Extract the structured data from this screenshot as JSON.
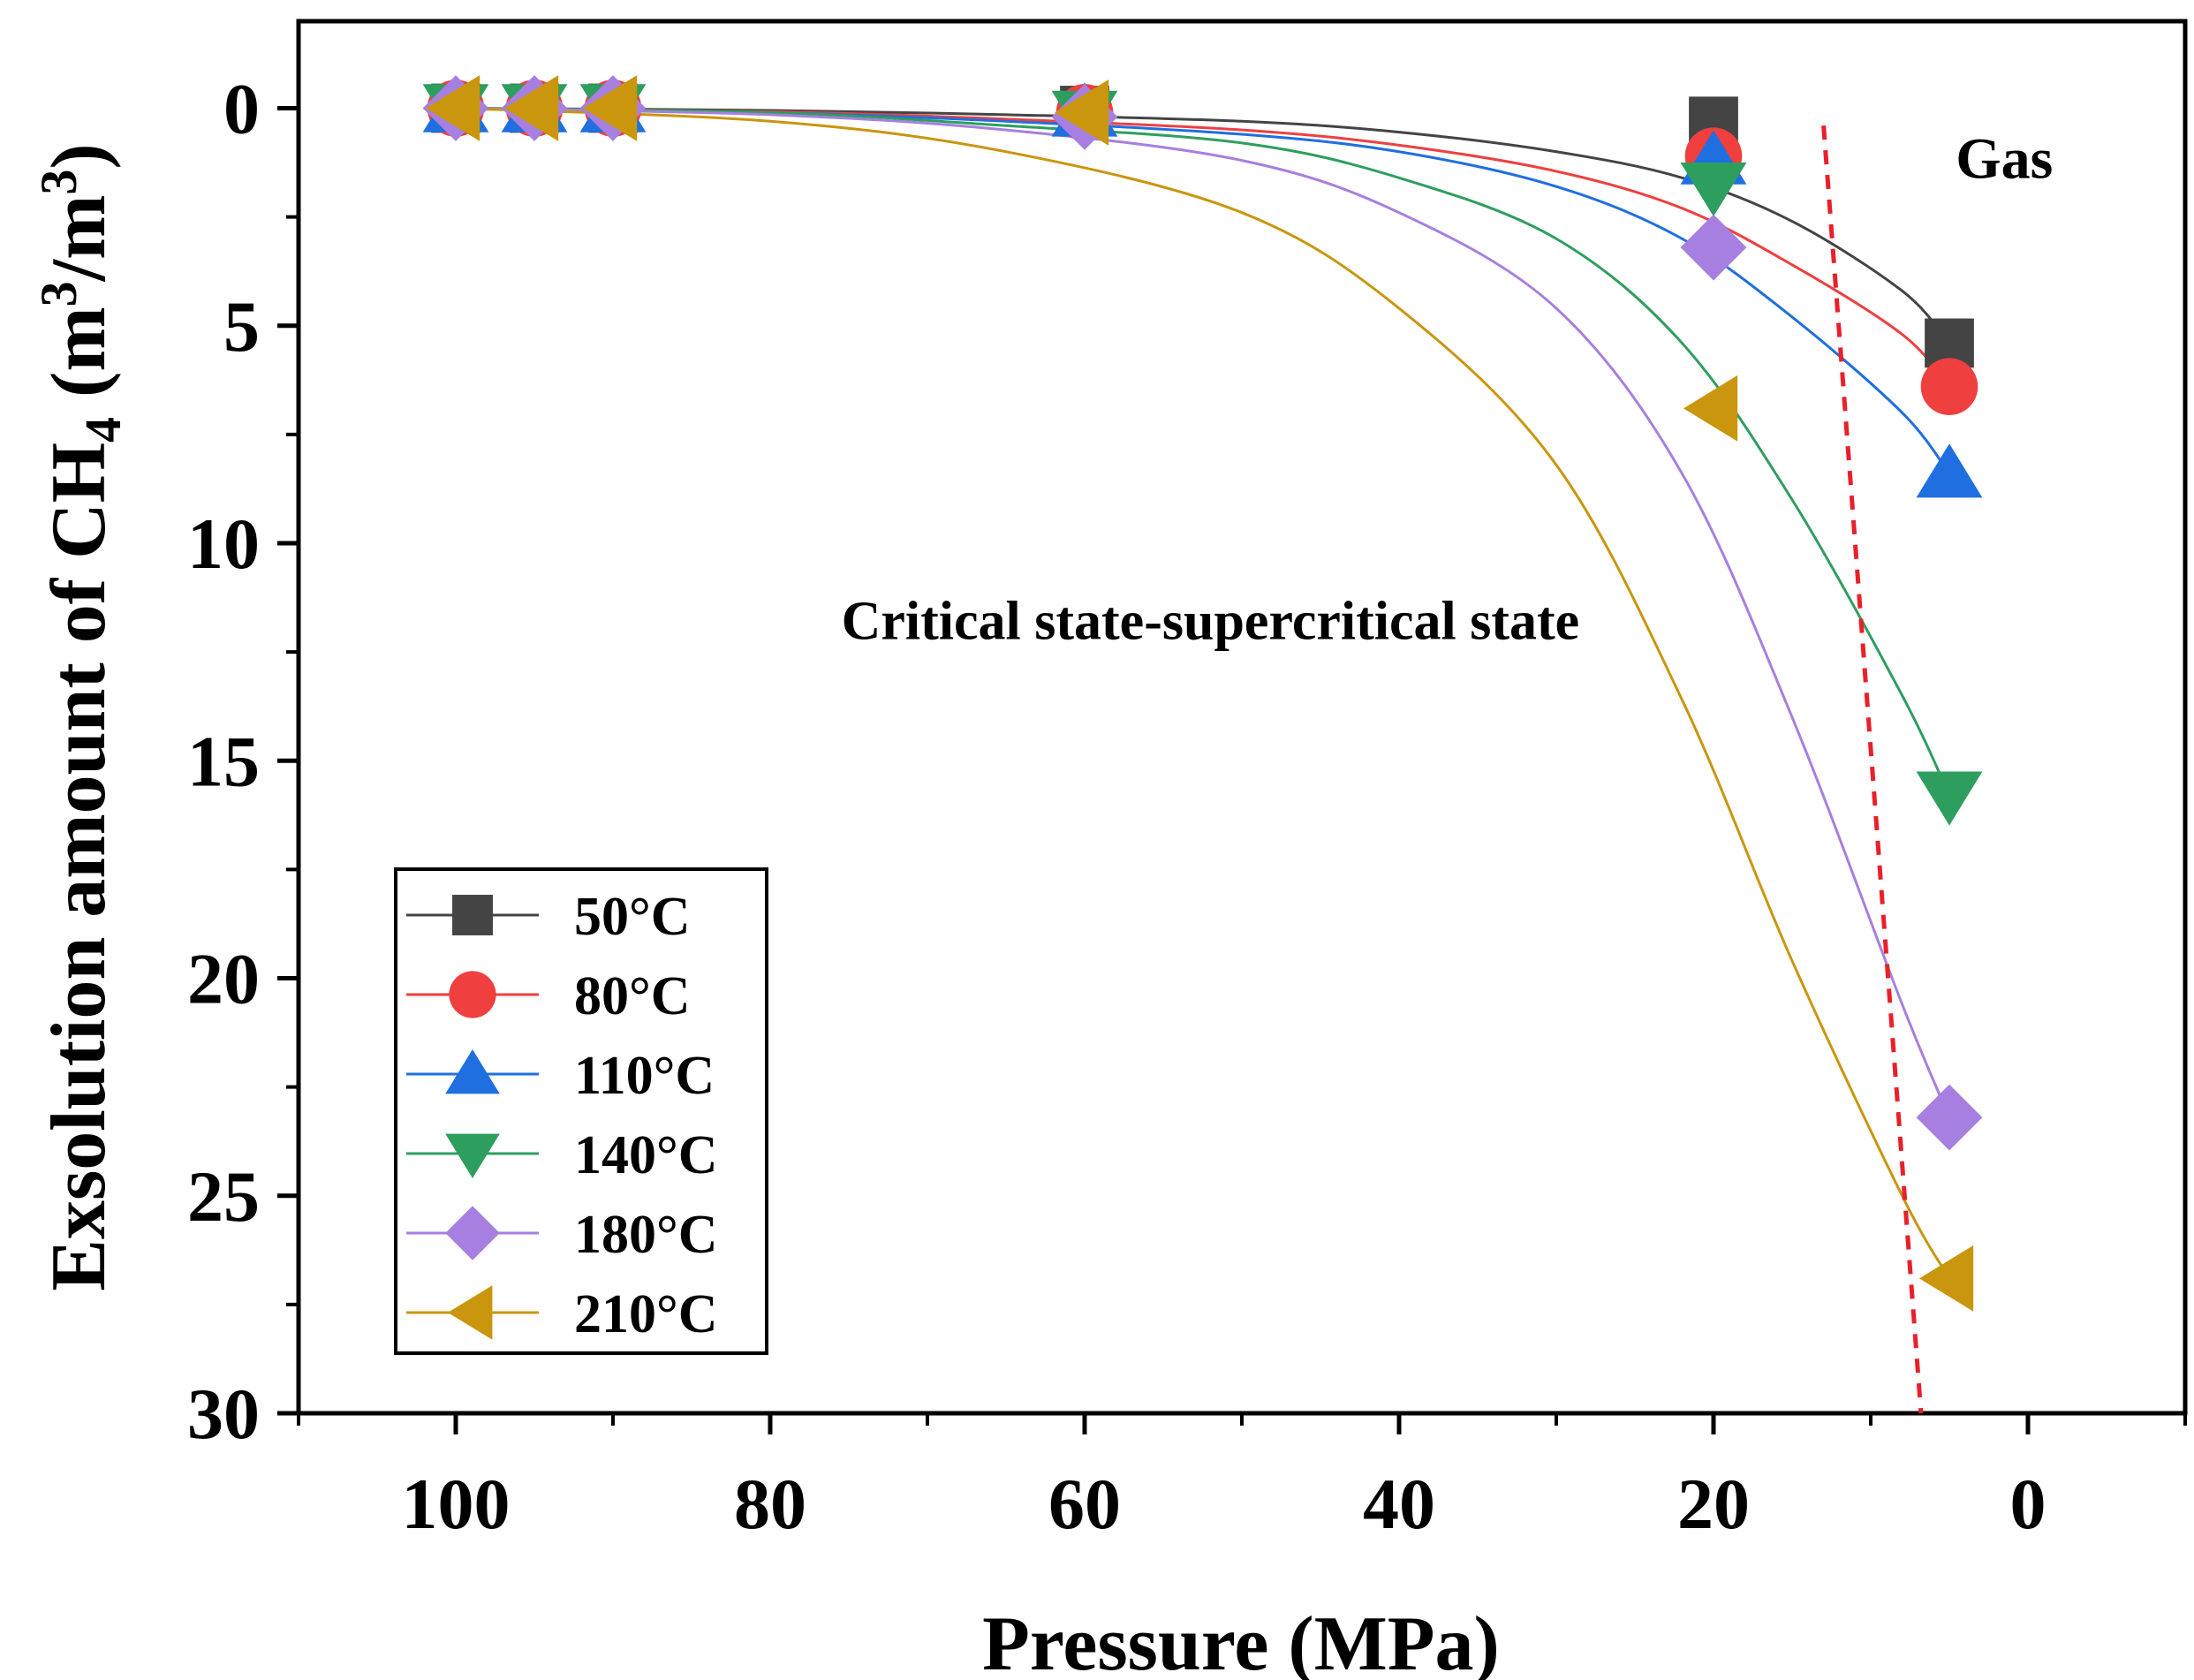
{
  "chart_data": {
    "type": "scatter",
    "xlabel": "Pressure (MPa)",
    "ylabel": {
      "main": "Exsolution amount of CH",
      "sub": "4",
      "unit_pre": " (m",
      "sup1": "3",
      "unit_mid": "/m",
      "sup2": "3",
      "unit_post": ")"
    },
    "xlim": [
      110,
      -10
    ],
    "ylim": [
      30,
      -2
    ],
    "y_reversed": true,
    "x_reversed": true,
    "x_ticks": [
      100,
      80,
      60,
      40,
      20,
      0
    ],
    "x_tick_labels": [
      "100",
      "80",
      "60",
      "40",
      "20",
      "0"
    ],
    "x_minor_ticks": [
      110,
      90,
      70,
      50,
      30,
      10,
      -10
    ],
    "y_ticks": [
      0,
      5,
      10,
      15,
      20,
      25,
      30
    ],
    "y_tick_labels": [
      "0",
      "5",
      "10",
      "15",
      "20",
      "25",
      "30"
    ],
    "y_minor_ticks": [
      2.5,
      7.5,
      12.5,
      17.5,
      22.5,
      27.5
    ],
    "grid": false,
    "legend_position": "bottom-left",
    "annotations": [
      {
        "text": "Gas",
        "x": 1.5,
        "y": 1.6
      },
      {
        "text": "Critical state-supercritical state",
        "x": 52,
        "y": 12.2
      }
    ],
    "divider_line": {
      "style": "dashed",
      "color": "#e8202a",
      "points": [
        [
          13,
          0.4
        ],
        [
          6.8,
          30
        ]
      ]
    },
    "series": [
      {
        "name": "50°C",
        "color": "#444444",
        "marker": "square",
        "x": [
          100,
          95,
          90,
          60,
          20,
          5
        ],
        "y": [
          0,
          0,
          0,
          0.05,
          0.3,
          5.4
        ],
        "fit": [
          0.0,
          0.05,
          0.15,
          0.3,
          0.55,
          1.0,
          1.6,
          2.6,
          4.2,
          5.4
        ]
      },
      {
        "name": "80°C",
        "color": "#ef3f3f",
        "marker": "circle",
        "x": [
          100,
          95,
          90,
          60,
          20,
          5
        ],
        "y": [
          0,
          0,
          0,
          0.1,
          1.1,
          6.4
        ],
        "fit": [
          0.0,
          0.08,
          0.25,
          0.5,
          0.85,
          1.45,
          2.3,
          3.6,
          5.2,
          6.4
        ]
      },
      {
        "name": "110°C",
        "color": "#1f6fe0",
        "marker": "triangle-up",
        "x": [
          100,
          95,
          90,
          60,
          20,
          5
        ],
        "y": [
          0,
          0,
          0,
          0.1,
          1.2,
          8.4
        ],
        "fit": [
          0.0,
          0.1,
          0.3,
          0.6,
          1.0,
          1.8,
          3.0,
          4.8,
          7.0,
          8.4
        ]
      },
      {
        "name": "140°C",
        "color": "#2e9e5e",
        "marker": "triangle-down",
        "x": [
          100,
          95,
          90,
          60,
          20,
          5
        ],
        "y": [
          0,
          0,
          0,
          0.15,
          1.8,
          15.8
        ],
        "fit": [
          0.0,
          0.1,
          0.4,
          0.8,
          1.6,
          3.0,
          5.4,
          9.0,
          13.5,
          15.8
        ]
      },
      {
        "name": "180°C",
        "color": "#a77fe0",
        "marker": "diamond",
        "x": [
          100,
          95,
          90,
          60,
          20,
          5
        ],
        "y": [
          0,
          0,
          0,
          0.2,
          3.2,
          23.2
        ],
        "fit": [
          0.0,
          0.15,
          0.5,
          1.2,
          2.4,
          4.6,
          8.4,
          14.0,
          20.6,
          23.2
        ]
      },
      {
        "name": "210°C",
        "color": "#c9960d",
        "marker": "triangle-left",
        "x": [
          100,
          95,
          90,
          60,
          20,
          5
        ],
        "y": [
          0,
          0,
          0,
          0.1,
          6.9,
          26.9
        ],
        "fit": [
          0.0,
          0.3,
          1.0,
          2.4,
          4.6,
          8.2,
          13.6,
          19.6,
          25.0,
          26.9
        ]
      }
    ],
    "fit_x": [
      100,
      80,
      65,
      50,
      40,
      30,
      22,
      15,
      8,
      5
    ]
  }
}
